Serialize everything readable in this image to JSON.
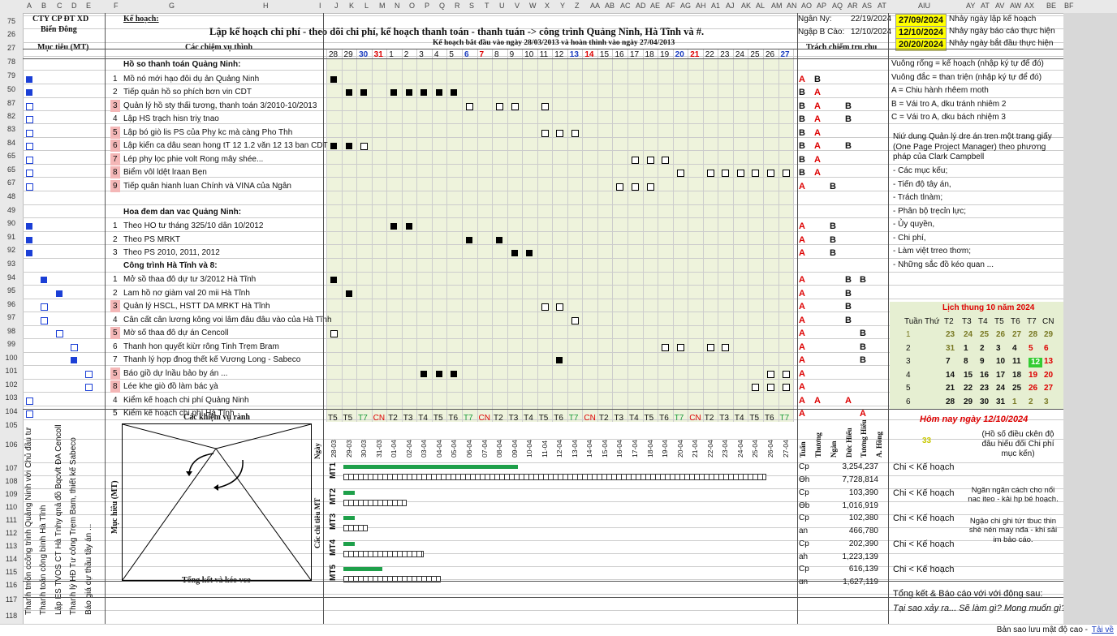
{
  "columns": [
    "A",
    "B",
    "C",
    "D",
    "E",
    "F",
    "G",
    "H",
    "I",
    "J",
    "K",
    "L",
    "M",
    "N",
    "O",
    "P",
    "Q",
    "R",
    "S",
    "T",
    "U",
    "V",
    "W",
    "X",
    "Y",
    "Z",
    "AA",
    "AB",
    "AC",
    "AD",
    "AE",
    "AF",
    "AG",
    "AH",
    "A1",
    "AJ",
    "AK",
    "AL",
    "AM",
    "AN",
    "AO",
    "AP",
    "AQ",
    "AR",
    "AS",
    "AT",
    "AIU",
    "AY",
    "AT",
    "AV",
    "AW",
    "AX",
    "BE",
    "BF"
  ],
  "company": {
    "line1": "CTY CP ĐT XD",
    "line2": "Biển Đông"
  },
  "plan_label": "Kế hoạch:",
  "title": "Lập kế hoạch chi phí - theo dõi chi phí, kế hoạch thanh toán - thanh tuán -> công trình Quảng Ninh, Hà Tĩnh và #.",
  "report": {
    "ngay_label": "Ngân Ny:",
    "ngay_value": "22/19/2024",
    "baocao_label": "Ngập B Cào:",
    "baocao_value": "12/10/2024"
  },
  "date_boxes": [
    {
      "value": "27/09/2024",
      "text": "Nhảy ngày lập kế hoạch"
    },
    {
      "value": "12/10/2024",
      "text": "Nhảy ngày báo cáo thực hiện"
    },
    {
      "value": "20/20/2024",
      "text": "Nhảy ngày bắt đầu thực hiện"
    }
  ],
  "headers": {
    "muc_tieu": "Mục tiêu (MT)",
    "cong_viec": "Các chiệm vụ thình",
    "ke_hoach": "Kế hoạch bắt đầu vào ngày 28/03/2013 và hoàn thình vào ngày 27/04/2013",
    "trach_nhiem": "Trách chiếm tru rhu"
  },
  "days": [
    "28",
    "29",
    "30",
    "31",
    "1",
    "2",
    "3",
    "4",
    "5",
    "6",
    "7",
    "8",
    "9",
    "10",
    "11",
    "12",
    "13",
    "14",
    "15",
    "16",
    "17",
    "18",
    "19",
    "20",
    "21",
    "22",
    "23",
    "24",
    "25",
    "26",
    "27"
  ],
  "row_numbers": [
    "75",
    "26",
    "27",
    "78",
    "79",
    "50",
    "87",
    "82",
    "83",
    "84",
    "65",
    "65",
    "67",
    "48",
    "49",
    "90",
    "91",
    "92",
    "93",
    "94",
    "95",
    "96",
    "97",
    "98",
    "99",
    "100",
    "101",
    "102",
    "103",
    "104",
    "105",
    "106",
    "107",
    "108",
    "109",
    "110",
    "111",
    "112",
    "113",
    "114",
    "115",
    "116",
    "117",
    "118"
  ],
  "sections": [
    {
      "title": "Hồ so thanh toán Quảng Ninh:"
    },
    {
      "title": "Hoa đem dan vac Quảng Ninh:"
    },
    {
      "title": "Công trình Hà Tĩnh và 8:"
    }
  ],
  "tasks": [
    {
      "num": "1",
      "name": "Mồ nó mới hạo đôi dụ ản Quảng Ninh",
      "resp": [
        "A",
        "B",
        "",
        "",
        ""
      ]
    },
    {
      "num": "2",
      "name": "Tiếp quản hồ so phích bơn vin CDT",
      "resp": [
        "B",
        "A",
        "",
        "",
        ""
      ]
    },
    {
      "num": "3",
      "name": "Quản lý hồ sty thấi tương, thanh toán 3/2010-10/2013",
      "resp": [
        "B",
        "A",
        "",
        "B",
        ""
      ]
    },
    {
      "num": "4",
      "name": "Lập HS trạch hisn triỵ tnao",
      "resp": [
        "B",
        "A",
        "",
        "B",
        ""
      ]
    },
    {
      "num": "5",
      "name": "Lập bó giò lis PS của Phy kc mà càng Pho Thh",
      "resp": [
        "B",
        "A",
        "",
        "",
        ""
      ]
    },
    {
      "num": "6",
      "name": "Lập kiến ca dâu sean hong tT 12 1.2 văn 12 13 ban CDT",
      "resp": [
        "B",
        "A",
        "",
        "B",
        ""
      ]
    },
    {
      "num": "7",
      "name": "Lép phy lọc phie volt Rong mây shée...",
      "resp": [
        "B",
        "A",
        "",
        "",
        ""
      ]
    },
    {
      "num": "8",
      "name": "Biểm vôl ldệt lraan Bẹn",
      "resp": [
        "B",
        "A",
        "",
        "",
        ""
      ]
    },
    {
      "num": "9",
      "name": "Tiếp quân hianh luan Chính và VINA của Ngân",
      "resp": [
        "A",
        "",
        "B",
        "",
        ""
      ]
    },
    {
      "num": "1",
      "name": "Theo HO tư tháng 325/10 dân 10/2012",
      "resp": [
        "A",
        "",
        "B",
        "",
        ""
      ]
    },
    {
      "num": "2",
      "name": "Theo PS MRKT",
      "resp": [
        "A",
        "",
        "B",
        "",
        ""
      ]
    },
    {
      "num": "3",
      "name": "Theo PS 2010, 2011, 2012",
      "resp": [
        "A",
        "",
        "B",
        "",
        ""
      ]
    },
    {
      "num": "1",
      "name": "Mở sồ thaa đô dự tư 3/2012 Hà Tĩnh",
      "resp": [
        "A",
        "",
        "",
        "B",
        "B"
      ]
    },
    {
      "num": "2",
      "name": "Lam hồ nơ giàm val 20 mii Hà Tĩnh",
      "resp": [
        "A",
        "",
        "",
        "B",
        ""
      ]
    },
    {
      "num": "3",
      "name": "Quản lý HSCL, HSTT DA MRKT Hà Tĩnh",
      "resp": [
        "A",
        "",
        "",
        "B",
        ""
      ]
    },
    {
      "num": "4",
      "name": "Cân cất cân lương kông voi lâm đâu đâu vào của Hà Tĩnh",
      "resp": [
        "A",
        "",
        "",
        "B",
        ""
      ]
    },
    {
      "num": "5",
      "name": "Mờ số thaa đô dự án Cencoll",
      "resp": [
        "A",
        "",
        "",
        "",
        "B"
      ]
    },
    {
      "num": "6",
      "name": "Thanh hon quyết kiừr rông Tinh Trẹm Bram",
      "resp": [
        "A",
        "",
        "",
        "",
        "B"
      ]
    },
    {
      "num": "7",
      "name": "Thanh lý hợp đnog thết kế Vương Long - Sabeco",
      "resp": [
        "A",
        "",
        "",
        "",
        "B"
      ]
    },
    {
      "num": "5",
      "name": "Báo giồ dự lnầu bảo by án ...",
      "resp": [
        "A",
        "",
        "",
        "",
        ""
      ]
    },
    {
      "num": "8",
      "name": "Lée khe giò đồ làm bác ỵà",
      "resp": [
        "A",
        "",
        "",
        "",
        ""
      ]
    },
    {
      "num": "4",
      "name": "Kiểm kế hoạch chi phí Quảng Ninh",
      "resp": [
        "A",
        "A",
        "",
        "A",
        ""
      ]
    },
    {
      "num": "5",
      "name": "Kiểm kế hoạch chi phí Hà Tĩnh",
      "resp": [
        "A",
        "",
        "",
        "",
        "A"
      ]
    }
  ],
  "legend": [
    "Vuông rống = kế hoạch (nhập ký tự  để đó)",
    "Vuông đắc = than triện (nhập ký tự  để đó)",
    "A = Chiu hành rhêem rnoth",
    "B = Vái tro A, dku tránh nhiêm 2",
    "C = Vái tro A, dku bách nhiệm 3"
  ],
  "notes": {
    "intro": "Niứ dung Quản lý dre án tren một trang giấy (One Page Project Manager) theo phương pháp của Clark Campbell",
    "items": [
      "- Các mục kếu;",
      "- Tiến độ tây án,",
      "- Trách tlnàm;",
      "- Phân bộ trẹcỉn lực;",
      "- Ủy quyền,",
      "- Chi phí,",
      "- Làm việt trreo thơm;",
      "- Những sắc đồ kéo quan ..."
    ]
  },
  "calendar": {
    "title": "Lịch thung 10 năm 2024",
    "headers": [
      "Tuần Thứ",
      "T2",
      "T3",
      "T4",
      "T5",
      "T6",
      "T7",
      "CN"
    ],
    "weeks": [
      [
        "1",
        "23",
        "24",
        "25",
        "26",
        "27",
        "28",
        "29"
      ],
      [
        "2",
        "31",
        "1",
        "2",
        "3",
        "4",
        "5",
        "6"
      ],
      [
        "3",
        "7",
        "8",
        "9",
        "10",
        "11",
        "12",
        "13"
      ],
      [
        "4",
        "14",
        "15",
        "16",
        "17",
        "18",
        "19",
        "20"
      ],
      [
        "5",
        "21",
        "22",
        "23",
        "24",
        "25",
        "26",
        "27"
      ],
      [
        "6",
        "28",
        "29",
        "30",
        "31",
        "1",
        "2",
        "3"
      ]
    ]
  },
  "today": {
    "label": "Hôm nay ngày 12/10/2024",
    "count": "33",
    "note": "(Hồ số điều ckên độ đâu hiếu đối Chi phí mục kến)"
  },
  "bottom_weekdays": [
    "T5",
    "T5",
    "T7",
    "CN",
    "T2",
    "T3",
    "T4",
    "T5",
    "T6",
    "T7",
    "CN",
    "T2",
    "T3",
    "T4",
    "T5",
    "T6",
    "T7",
    "CN",
    "T2",
    "T3",
    "T4",
    "T5",
    "T6",
    "T7",
    "CN",
    "T2",
    "T3",
    "T4",
    "T5",
    "T6",
    "T7"
  ],
  "bottom_dates": [
    "28-03",
    "29-03",
    "30-03",
    "31-03",
    "01-04",
    "02-04",
    "03-04",
    "04-04",
    "05-04",
    "06-04",
    "07-04",
    "08-04",
    "09-04",
    "10-04",
    "11-04",
    "12-04",
    "13-04",
    "14-04",
    "15-04",
    "16-04",
    "17-04",
    "18-04",
    "19-04",
    "20-04",
    "21-04",
    "22-04",
    "23-04",
    "24-04",
    "25-04",
    "26-04",
    "27-04"
  ],
  "diagram": {
    "top": "Các khiệm vụ rành",
    "bottom": "Tổng kết và kéo vco",
    "left": "Mục hiêu (MT)"
  },
  "vertical_labels": [
    "Thanh tmôn ccông trình Quảng Ninh với Chủ đầu tư",
    "Thanh toán công bình Hà Tĩnh",
    "Lập ES TVOS CT Hà Tnhy qnả đồ Bqcvlt ĐA Cencoll",
    "Thanh lý HĐ Tư công Trẹm Bam, thiết kế Sabeco",
    "Báo giá dự thầu tầy án ..."
  ],
  "chart_side": "Cấc chi tiêu MT",
  "chart_date_label": "Ngày",
  "resp_headers": [
    "Tuấn",
    "Thương",
    "Ngàn",
    "Dức Hiếu",
    "Tương Hiểu",
    "A. Hồng"
  ],
  "cost_rows": [
    {
      "mt": "MT1",
      "plan_label": "Cp",
      "plan": "3,254,237",
      "act_label": "Ɵh",
      "act": "7,728,814",
      "plan_frac": 0.31,
      "act_frac": 0.75,
      "note": "Chi < Kế hoạch"
    },
    {
      "mt": "MT2",
      "plan_label": "Cp",
      "plan": "103,390",
      "act_label": "Ɵb",
      "act": "1,016,919",
      "plan_frac": 0.02,
      "act_frac": 0.11,
      "note": "Chi < Kế hoạch"
    },
    {
      "mt": "MT3",
      "plan_label": "Cp",
      "plan": "102,380",
      "act_label": "an",
      "act": "466,780",
      "plan_frac": 0.02,
      "act_frac": 0.04,
      "note": "Chi < Kế hoạch"
    },
    {
      "mt": "MT4",
      "plan_label": "Cp",
      "plan": "202,390",
      "act_label": "ah",
      "act": "1,223,139",
      "plan_frac": 0.02,
      "act_frac": 0.14,
      "note": "Chi < Kế hoạch"
    },
    {
      "mt": "MT5",
      "plan_label": "Cp",
      "plan": "616,139",
      "act_label": "ɑn",
      "act": "1,627,119",
      "plan_frac": 0.07,
      "act_frac": 0.17,
      "note": "Chi < Kế hoạch"
    }
  ],
  "side_note_1": "Ngăn ngăn cách cho nổi nac iteo - kải hp bé hoạch.",
  "side_note_2": "Ngậo chi ghi tứr tbuc thin shè nén may nđa - khi sải im bảo cáo.",
  "summary": {
    "line1": "Tổng kết & Báo cáo với với động sau:",
    "line2": "Tại sao xảy ra... Sẽ làm gì? Mong muốn gì?"
  },
  "status_bar": {
    "text": "Bản sao lưu mật độ cao - ",
    "link": "Tải về"
  },
  "colors": {
    "accent_blue": "#1b3fd6",
    "plan_green": "#1ea04a",
    "highlight_yellow": "#ffff00",
    "responsible_red": "#dd0000"
  }
}
